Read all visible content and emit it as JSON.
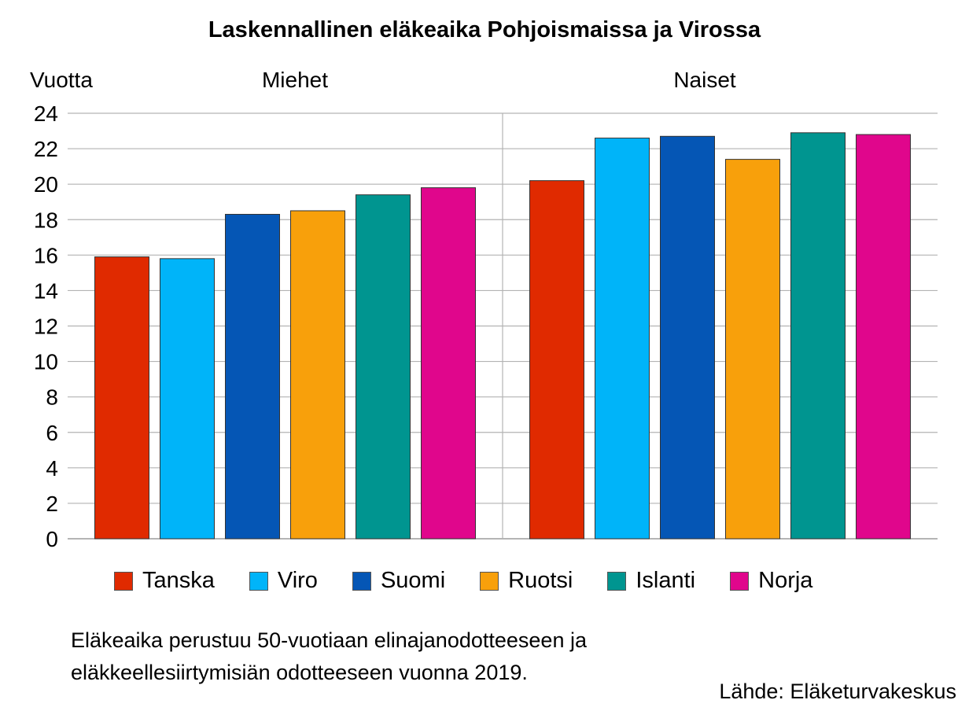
{
  "chart_data": {
    "type": "bar",
    "title": "Laskennallinen eläkeaika Pohjoismaissa ja Virossa",
    "ylabel": "Vuotta",
    "ylim": [
      0,
      24
    ],
    "yticks": [
      "0",
      "2",
      "4",
      "6",
      "8",
      "10",
      "12",
      "14",
      "16",
      "18",
      "20",
      "22",
      "24"
    ],
    "grid": true,
    "legend_position": "bottom",
    "groups": [
      "Miehet",
      "Naiset"
    ],
    "series": [
      {
        "name": "Tanska",
        "color": "#e02a00",
        "values": [
          15.9,
          20.2
        ]
      },
      {
        "name": "Viro",
        "color": "#00b4f9",
        "values": [
          15.8,
          22.6
        ]
      },
      {
        "name": "Suomi",
        "color": "#0556b5",
        "values": [
          18.3,
          22.7
        ]
      },
      {
        "name": "Ruotsi",
        "color": "#f8a00b",
        "values": [
          18.5,
          21.4
        ]
      },
      {
        "name": "Islanti",
        "color": "#009590",
        "values": [
          19.4,
          22.9
        ]
      },
      {
        "name": "Norja",
        "color": "#e0068c",
        "values": [
          19.8,
          22.8
        ]
      }
    ]
  },
  "note_lines": [
    "Eläkeaika perustuu 50-vuotiaan elinajanodotteeseen ja",
    "eläkkeellesiirtymisiän odotteeseen vuonna 2019."
  ],
  "source": "Lähde: Eläketurvakeskus"
}
